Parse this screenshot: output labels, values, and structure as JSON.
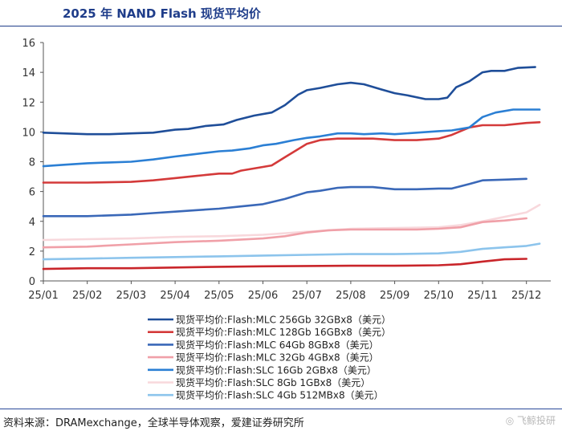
{
  "title": "2025 年 NAND Flash 现货平均价",
  "source": "资料来源：DRAMexchange，全球半导体观察，爱建证券研究所",
  "watermark": "◎ 飞鲸投研",
  "chart_data": {
    "type": "line",
    "title": "2025 年 NAND Flash 现货平均价",
    "xlabel": "",
    "ylabel": "",
    "x_ticks": [
      "25/01",
      "25/02",
      "25/03",
      "25/04",
      "25/05",
      "25/06",
      "25/07",
      "25/08",
      "25/09",
      "25/10",
      "25/11",
      "25/12"
    ],
    "y_ticks": [
      0,
      2,
      4,
      6,
      8,
      10,
      12,
      14,
      16
    ],
    "ylim": [
      0,
      16
    ],
    "xlim": [
      0,
      11.3
    ],
    "grid": false,
    "legend_position": "bottom",
    "series": [
      {
        "name": "现货平均价:Flash:MLC 256Gb 32GBx8（美元）",
        "color": "#1f4e99",
        "x": [
          0,
          1,
          1.5,
          2,
          2.5,
          3,
          3.3,
          3.7,
          4.1,
          4.4,
          4.8,
          5.2,
          5.5,
          5.8,
          6,
          6.3,
          6.7,
          7,
          7.3,
          7.7,
          8,
          8.3,
          8.7,
          9,
          9.2,
          9.4,
          9.7,
          10,
          10.2,
          10.5,
          10.8,
          11.2
        ],
        "values": [
          9.95,
          9.85,
          9.85,
          9.9,
          9.95,
          10.15,
          10.2,
          10.4,
          10.5,
          10.8,
          11.1,
          11.3,
          11.8,
          12.5,
          12.8,
          12.95,
          13.2,
          13.3,
          13.2,
          12.85,
          12.6,
          12.45,
          12.2,
          12.2,
          12.3,
          13.0,
          13.4,
          14.0,
          14.1,
          14.1,
          14.3,
          14.35
        ]
      },
      {
        "name": "现货平均价:Flash:MLC 128Gb 16GBx8（美元）",
        "color": "#d43a3a",
        "x": [
          0,
          1,
          2,
          2.5,
          3,
          3.5,
          4,
          4.3,
          4.5,
          5,
          5.2,
          5.5,
          6,
          6.3,
          6.7,
          7,
          7.5,
          8,
          8.5,
          9,
          9.3,
          9.7,
          10,
          10.5,
          11,
          11.3
        ],
        "values": [
          6.6,
          6.6,
          6.65,
          6.75,
          6.9,
          7.05,
          7.2,
          7.2,
          7.4,
          7.65,
          7.75,
          8.3,
          9.2,
          9.45,
          9.55,
          9.55,
          9.55,
          9.45,
          9.45,
          9.55,
          9.8,
          10.3,
          10.45,
          10.45,
          10.6,
          10.65
        ]
      },
      {
        "name": "现货平均价:Flash:MLC 64Gb 8GBx8（美元）",
        "color": "#3a68b8",
        "x": [
          0,
          1,
          2,
          2.5,
          3,
          3.5,
          4,
          4.5,
          5,
          5.5,
          6,
          6.3,
          6.7,
          7,
          7.5,
          8,
          8.5,
          9,
          9.3,
          9.7,
          10,
          10.5,
          11
        ],
        "values": [
          4.35,
          4.35,
          4.45,
          4.55,
          4.65,
          4.75,
          4.85,
          5.0,
          5.15,
          5.5,
          5.95,
          6.05,
          6.25,
          6.3,
          6.3,
          6.15,
          6.15,
          6.2,
          6.2,
          6.5,
          6.75,
          6.8,
          6.85
        ]
      },
      {
        "name": "现货平均价:Flash:MLC 32Gb 4GBx8（美元）",
        "color": "#f0a0a8",
        "x": [
          0,
          1,
          2,
          3,
          4,
          5,
          5.5,
          6,
          6.5,
          7,
          7.5,
          8,
          8.5,
          9,
          9.5,
          10,
          10.5,
          11
        ],
        "values": [
          2.25,
          2.3,
          2.45,
          2.6,
          2.7,
          2.85,
          3.0,
          3.25,
          3.4,
          3.45,
          3.45,
          3.45,
          3.45,
          3.5,
          3.6,
          3.95,
          4.05,
          4.2
        ]
      },
      {
        "name": "现货平均价:Flash:SLC 16Gb 2GBx8（美元）",
        "color": "#2b7fd4",
        "x": [
          0,
          0.5,
          1,
          1.5,
          2,
          2.5,
          3,
          3.3,
          3.7,
          4,
          4.3,
          4.7,
          5,
          5.3,
          5.7,
          6,
          6.3,
          6.7,
          7,
          7.3,
          7.7,
          8,
          8.5,
          9,
          9.3,
          9.7,
          10,
          10.3,
          10.7,
          11,
          11.3
        ],
        "values": [
          7.7,
          7.8,
          7.9,
          7.95,
          8.0,
          8.15,
          8.35,
          8.45,
          8.6,
          8.7,
          8.75,
          8.9,
          9.1,
          9.2,
          9.45,
          9.6,
          9.7,
          9.9,
          9.9,
          9.85,
          9.9,
          9.85,
          9.95,
          10.05,
          10.1,
          10.3,
          11.0,
          11.3,
          11.5,
          11.5,
          11.5
        ]
      },
      {
        "name": "现货平均价:Flash:SLC 8Gb 1GBx8（美元）",
        "color": "#f8d8dc",
        "x": [
          0,
          1,
          2,
          3,
          4,
          5,
          6,
          6.5,
          7,
          8,
          9,
          9.5,
          10,
          10.5,
          11,
          11.3
        ],
        "values": [
          2.75,
          2.8,
          2.85,
          2.95,
          3.0,
          3.1,
          3.3,
          3.4,
          3.5,
          3.55,
          3.6,
          3.75,
          4.0,
          4.3,
          4.6,
          5.1
        ]
      },
      {
        "name": "现货平均价:Flash:SLC 4Gb 512MBx8（美元）",
        "color": "#8cc4ec",
        "x": [
          0,
          1,
          2,
          3,
          4,
          5,
          6,
          7,
          8,
          9,
          9.5,
          10,
          10.5,
          11,
          11.3
        ],
        "values": [
          1.45,
          1.5,
          1.55,
          1.6,
          1.65,
          1.7,
          1.75,
          1.8,
          1.8,
          1.85,
          1.95,
          2.15,
          2.25,
          2.35,
          2.5
        ]
      },
      {
        "name": "",
        "color": "#c9252a",
        "x": [
          0,
          1,
          2,
          3,
          4,
          5,
          6,
          7,
          8,
          9,
          9.5,
          10,
          10.5,
          11
        ],
        "values": [
          0.8,
          0.85,
          0.85,
          0.9,
          0.95,
          0.98,
          1.0,
          1.02,
          1.02,
          1.05,
          1.12,
          1.3,
          1.45,
          1.48
        ]
      }
    ]
  }
}
